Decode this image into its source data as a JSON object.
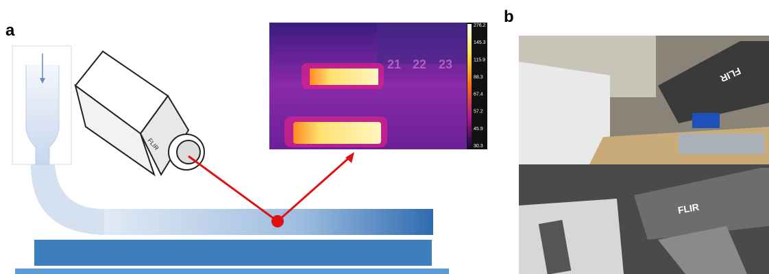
{
  "panels": {
    "a": "a",
    "b": "b"
  },
  "thermal": {
    "scale_labels": [
      "276.2",
      "145.3",
      "115.9",
      "88.3",
      "67.4",
      "57.2",
      "45.9",
      "30.3"
    ],
    "ruler": [
      "21",
      "22",
      "23"
    ]
  },
  "photos": {
    "top_logo": "FLIR",
    "bottom_logo": "FLIR"
  },
  "camera": {
    "logo": "FLIR"
  }
}
